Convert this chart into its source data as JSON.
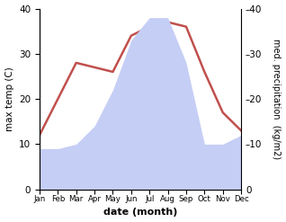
{
  "months": [
    "Jan",
    "Feb",
    "Mar",
    "Apr",
    "May",
    "Jun",
    "Jul",
    "Aug",
    "Sep",
    "Oct",
    "Nov",
    "Dec"
  ],
  "temperature": [
    12.0,
    20.0,
    28.0,
    27.0,
    26.0,
    34.0,
    36.0,
    37.0,
    36.0,
    26.0,
    17.0,
    13.0
  ],
  "precipitation": [
    9,
    9,
    10,
    14,
    22,
    33,
    38,
    38,
    28,
    10,
    10,
    12
  ],
  "temp_color": "#c0504d",
  "precip_fill_color": "#c5cef5",
  "xlabel": "date (month)",
  "ylabel_left": "max temp (C)",
  "ylabel_right": "med. precipitation  (kg/m2)",
  "ylim": [
    0,
    40
  ],
  "yticks": [
    0,
    10,
    20,
    30,
    40
  ],
  "temp_linewidth": 1.8,
  "background_color": "#ffffff"
}
